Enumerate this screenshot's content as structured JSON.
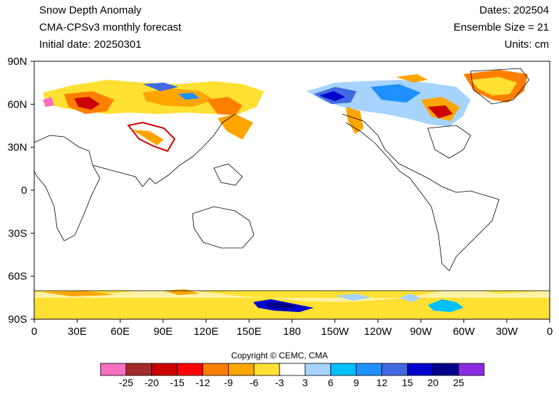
{
  "header": {
    "title": "Snow Depth Anomaly",
    "model": "CMA-CPSv3 monthly forecast",
    "initial_date": "Initial date: 20250301",
    "dates": "Dates: 202504",
    "ensemble": "Ensemble Size = 21",
    "units": "Units: cm"
  },
  "axes": {
    "x_ticks": [
      "0",
      "30E",
      "60E",
      "90E",
      "120E",
      "150E",
      "180",
      "150W",
      "120W",
      "90W",
      "60W",
      "30W",
      "0"
    ],
    "y_ticks": [
      "90N",
      "60N",
      "30N",
      "0",
      "30S",
      "60S",
      "90S"
    ]
  },
  "colorbar": {
    "labels": [
      "-25",
      "-20",
      "-15",
      "-12",
      "-9",
      "-6",
      "-3",
      "3",
      "6",
      "9",
      "12",
      "15",
      "20",
      "25"
    ],
    "colors": [
      "#f76fc0",
      "#a52a2a",
      "#cc0000",
      "#ff0000",
      "#ff7f00",
      "#ffa500",
      "#ffe033",
      "#ffffff",
      "#a6d4ff",
      "#00bfff",
      "#1e90ff",
      "#4169e1",
      "#0000cd",
      "#00008b",
      "#8a2be2"
    ]
  },
  "copyright": "Copyright © CEMC, CMA"
}
